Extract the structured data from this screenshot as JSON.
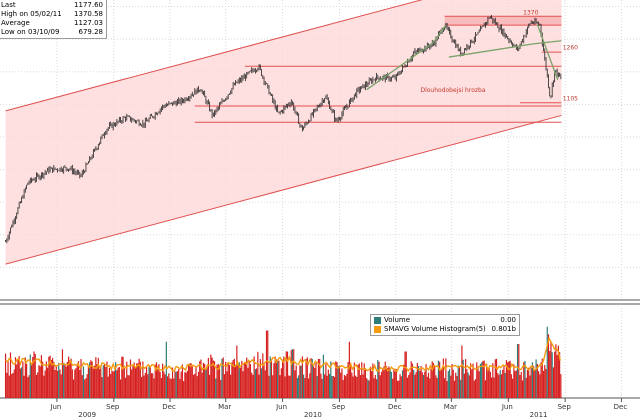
{
  "stats": [
    {
      "label": "Last",
      "value": "1177.60"
    },
    {
      "label": "High on 05/02/11",
      "value": "1370.58"
    },
    {
      "label": "Average",
      "value": "1127.03"
    },
    {
      "label": "Low on 03/10/09",
      "value": "679.28"
    }
  ],
  "volume_legend": [
    {
      "name": "Volume",
      "value": "0.00",
      "color": "#2e7d78"
    },
    {
      "name": "SMAVG Volume Histogram(5)",
      "value": "0.801b",
      "color": "#f39c12"
    }
  ],
  "annotations": {
    "level_1370": "1370",
    "level_1260": "1260",
    "level_1105": "1105",
    "trend_label": "Dlouhodobejsi hrozba"
  },
  "colors": {
    "price": "#222222",
    "channel_line": "#e05050",
    "channel_fill": "#ffd6d6",
    "zone_fill": "#f7b3b3",
    "level_line": "#e05050",
    "pattern_line": "#7aa36a",
    "volume_bar": "#d62020",
    "volume_alt": "#2e7d78",
    "volume_avg": "#f39c12",
    "grid": "#d9d9d9",
    "axis_text": "#333333"
  },
  "chart_data": {
    "type": "line",
    "date_range": [
      "2009-03-10",
      "2011-08-26"
    ],
    "ylim": [
      500,
      1420
    ],
    "price_series": {
      "name": "",
      "x": [
        "2009-03-10",
        "2009-04-15",
        "2009-05-20",
        "2009-06-20",
        "2009-07-10",
        "2009-08-20",
        "2009-09-20",
        "2009-10-20",
        "2009-11-20",
        "2009-12-20",
        "2010-01-19",
        "2010-02-08",
        "2010-03-15",
        "2010-04-23",
        "2010-05-25",
        "2010-06-15",
        "2010-07-02",
        "2010-08-09",
        "2010-08-27",
        "2010-09-30",
        "2010-10-30",
        "2010-11-30",
        "2010-12-31",
        "2011-01-31",
        "2011-02-18",
        "2011-03-16",
        "2011-04-15",
        "2011-05-02",
        "2011-06-16",
        "2011-07-07",
        "2011-07-22",
        "2011-08-08",
        "2011-08-15",
        "2011-08-26"
      ],
      "values": [
        679,
        860,
        900,
        905,
        880,
        1025,
        1060,
        1040,
        1095,
        1110,
        1150,
        1065,
        1160,
        1217,
        1070,
        1110,
        1022,
        1125,
        1047,
        1141,
        1183,
        1180,
        1258,
        1286,
        1343,
        1256,
        1320,
        1370,
        1267,
        1353,
        1345,
        1119,
        1204,
        1177
      ]
    },
    "channel": {
      "upper": {
        "x": [
          "2009-03-10",
          "2011-08-26"
        ],
        "values": [
          1080,
          1535
        ]
      },
      "lower": {
        "x": [
          "2009-03-10",
          "2011-08-26"
        ],
        "values": [
          610,
          1066
        ]
      }
    },
    "levels": [
      {
        "value": 1370,
        "label": "1370",
        "x_start": "2011-02-18",
        "x_end": "2011-08-26"
      },
      {
        "value": 1343,
        "label": "",
        "x_start": "2011-02-18",
        "x_end": "2011-08-26"
      },
      {
        "value": 1260,
        "label": "1260",
        "x_start": "2011-07-25",
        "x_end": "2011-08-26"
      },
      {
        "value": 1217,
        "label": "",
        "x_start": "2010-04-01",
        "x_end": "2011-08-26"
      },
      {
        "value": 1105,
        "label": "1105",
        "x_start": "2011-06-20",
        "x_end": "2011-08-26"
      },
      {
        "value": 1095,
        "label": "",
        "x_start": "2010-01-10",
        "x_end": "2011-08-26"
      },
      {
        "value": 1045,
        "label": "",
        "x_start": "2010-01-10",
        "x_end": "2011-08-26"
      }
    ],
    "pattern_lines": [
      {
        "x": [
          "2010-10-15",
          "2011-01-31",
          "2011-02-20"
        ],
        "values": [
          1145,
          1290,
          1343
        ]
      },
      {
        "x": [
          "2011-02-25",
          "2011-07-10",
          "2011-08-26"
        ],
        "values": [
          1245,
          1285,
          1295
        ]
      },
      {
        "x": [
          "2011-07-18",
          "2011-08-20"
        ],
        "values": [
          1345,
          1175
        ]
      }
    ],
    "volume": {
      "ylim": [
        0,
        12
      ],
      "spike_dates": [
        "2009-06-10",
        "2009-07-10",
        "2009-09-15",
        "2009-11-25",
        "2010-02-05",
        "2010-03-19",
        "2010-05-07",
        "2010-06-18",
        "2010-07-30",
        "2010-09-17",
        "2010-12-17",
        "2011-03-18",
        "2011-06-17",
        "2011-08-05",
        "2011-08-09"
      ],
      "spike_values": [
        6.5,
        5.2,
        5.5,
        7.5,
        5.8,
        7.0,
        9.0,
        6.5,
        5.2,
        7.5,
        6.2,
        7.0,
        7.2,
        8.5,
        7.6
      ],
      "avg_x": [
        "2009-03-10",
        "2009-06-01",
        "2009-09-01",
        "2009-12-01",
        "2010-03-01",
        "2010-06-01",
        "2010-09-01",
        "2010-12-01",
        "2011-03-01",
        "2011-06-01",
        "2011-07-25",
        "2011-08-05",
        "2011-08-15",
        "2011-08-26"
      ],
      "avg_values": [
        5.0,
        4.6,
        4.2,
        4.0,
        4.3,
        5.1,
        4.2,
        3.9,
        4.1,
        4.1,
        4.0,
        8.2,
        6.8,
        4.9
      ]
    },
    "x_ticks": [
      "Jun",
      "Sep",
      "Dec",
      "Mar",
      "Jun",
      "Sep",
      "Dec",
      "Mar",
      "Jun",
      "Sep",
      "Dec"
    ],
    "x_tick_dates": [
      "2009-06-01",
      "2009-09-01",
      "2009-12-01",
      "2010-03-01",
      "2010-06-01",
      "2010-09-01",
      "2010-12-01",
      "2011-03-01",
      "2011-06-01",
      "2011-09-01",
      "2011-12-01"
    ],
    "year_labels": [
      "2009",
      "2010",
      "2011"
    ],
    "year_label_dates": [
      "2009-07-20",
      "2010-07-20",
      "2011-07-20"
    ],
    "xlim": [
      "2009-03-01",
      "2011-12-31"
    ]
  }
}
